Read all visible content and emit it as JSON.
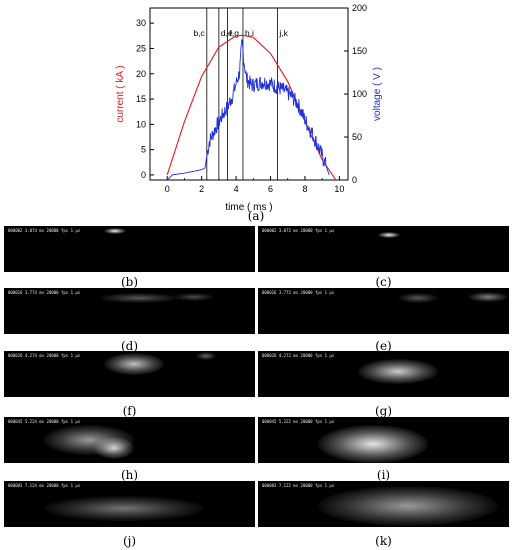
{
  "figure": {
    "chart_label": "(a)",
    "panels": [
      {
        "id": "b",
        "label": "(b)",
        "meta": "000002 3.074 ms 20000 fps 1 µs"
      },
      {
        "id": "c",
        "label": "(c)",
        "meta": "000002 3.072 ms 20000 fps 1 µs"
      },
      {
        "id": "d",
        "label": "(d)",
        "meta": "000016 3.774 ms 20000 fps 1 µs"
      },
      {
        "id": "e",
        "label": "(e)",
        "meta": "000016 3.772 ms 20000 fps 1 µs"
      },
      {
        "id": "f",
        "label": "(f)",
        "meta": "000026 4.274 ms 20000 fps 1 µs"
      },
      {
        "id": "g",
        "label": "(g)",
        "meta": "000026 4.272 ms 20000 fps 1 µs"
      },
      {
        "id": "h",
        "label": "(h)",
        "meta": "000045 5.224 ms 20000 fps 1 µs"
      },
      {
        "id": "i",
        "label": "(i)",
        "meta": "000045 5.222 ms 20000 fps 1 µs"
      },
      {
        "id": "j",
        "label": "(j)",
        "meta": "000083 7.124 ms 20000 fps 1 µs"
      },
      {
        "id": "k",
        "label": "(k)",
        "meta": "000083 7.122 ms 20000 fps 1 µs"
      }
    ]
  },
  "chart_data": {
    "type": "line",
    "xlabel": "time ( ms )",
    "ylabel_left": "current ( kA )",
    "ylabel_right": "voltage ( V )",
    "xlim": [
      -1,
      10.5
    ],
    "ylim_left": [
      -1,
      33
    ],
    "ylim_right": [
      0,
      200
    ],
    "x_ticks": [
      0,
      2,
      4,
      6,
      8,
      10
    ],
    "y_left_ticks": [
      0,
      5,
      10,
      15,
      20,
      25,
      30
    ],
    "y_right_ticks": [
      0,
      50,
      100,
      150,
      200
    ],
    "colors": {
      "current": "#e8191f",
      "voltage": "#1f2fdc"
    },
    "series": [
      {
        "name": "current",
        "axis": "left",
        "x": [
          0,
          1,
          2,
          3,
          4,
          4.4,
          5,
          6,
          7,
          8,
          9,
          9.8
        ],
        "y": [
          0,
          10.5,
          19.5,
          25.3,
          27.5,
          27.6,
          27.2,
          24.0,
          18.5,
          10.5,
          3.0,
          -1.0
        ]
      },
      {
        "name": "voltage",
        "axis": "right",
        "x": [
          0,
          0.3,
          1,
          2,
          2.2,
          2.3,
          2.45,
          2.8,
          3.2,
          3.5,
          3.8,
          4.0,
          4.2,
          4.35,
          4.45,
          4.6,
          4.9,
          5.2,
          5.6,
          6.0,
          6.4,
          6.8,
          7.2,
          7.6,
          8.0,
          8.4,
          8.8,
          9.2,
          9.4
        ],
        "y": [
          0,
          6,
          8,
          12,
          14,
          28,
          45,
          60,
          75,
          85,
          98,
          112,
          125,
          160,
          140,
          118,
          110,
          112,
          114,
          112,
          108,
          104,
          98,
          88,
          70,
          55,
          38,
          18,
          6
        ]
      }
    ],
    "vertical_markers": [
      {
        "x": 2.3,
        "label": "b,c"
      },
      {
        "x": 3.0,
        "label": "d,e"
      },
      {
        "x": 3.5,
        "label": "f,g"
      },
      {
        "x": 4.4,
        "label": "h,i"
      },
      {
        "x": 6.4,
        "label": "j,k"
      }
    ]
  }
}
